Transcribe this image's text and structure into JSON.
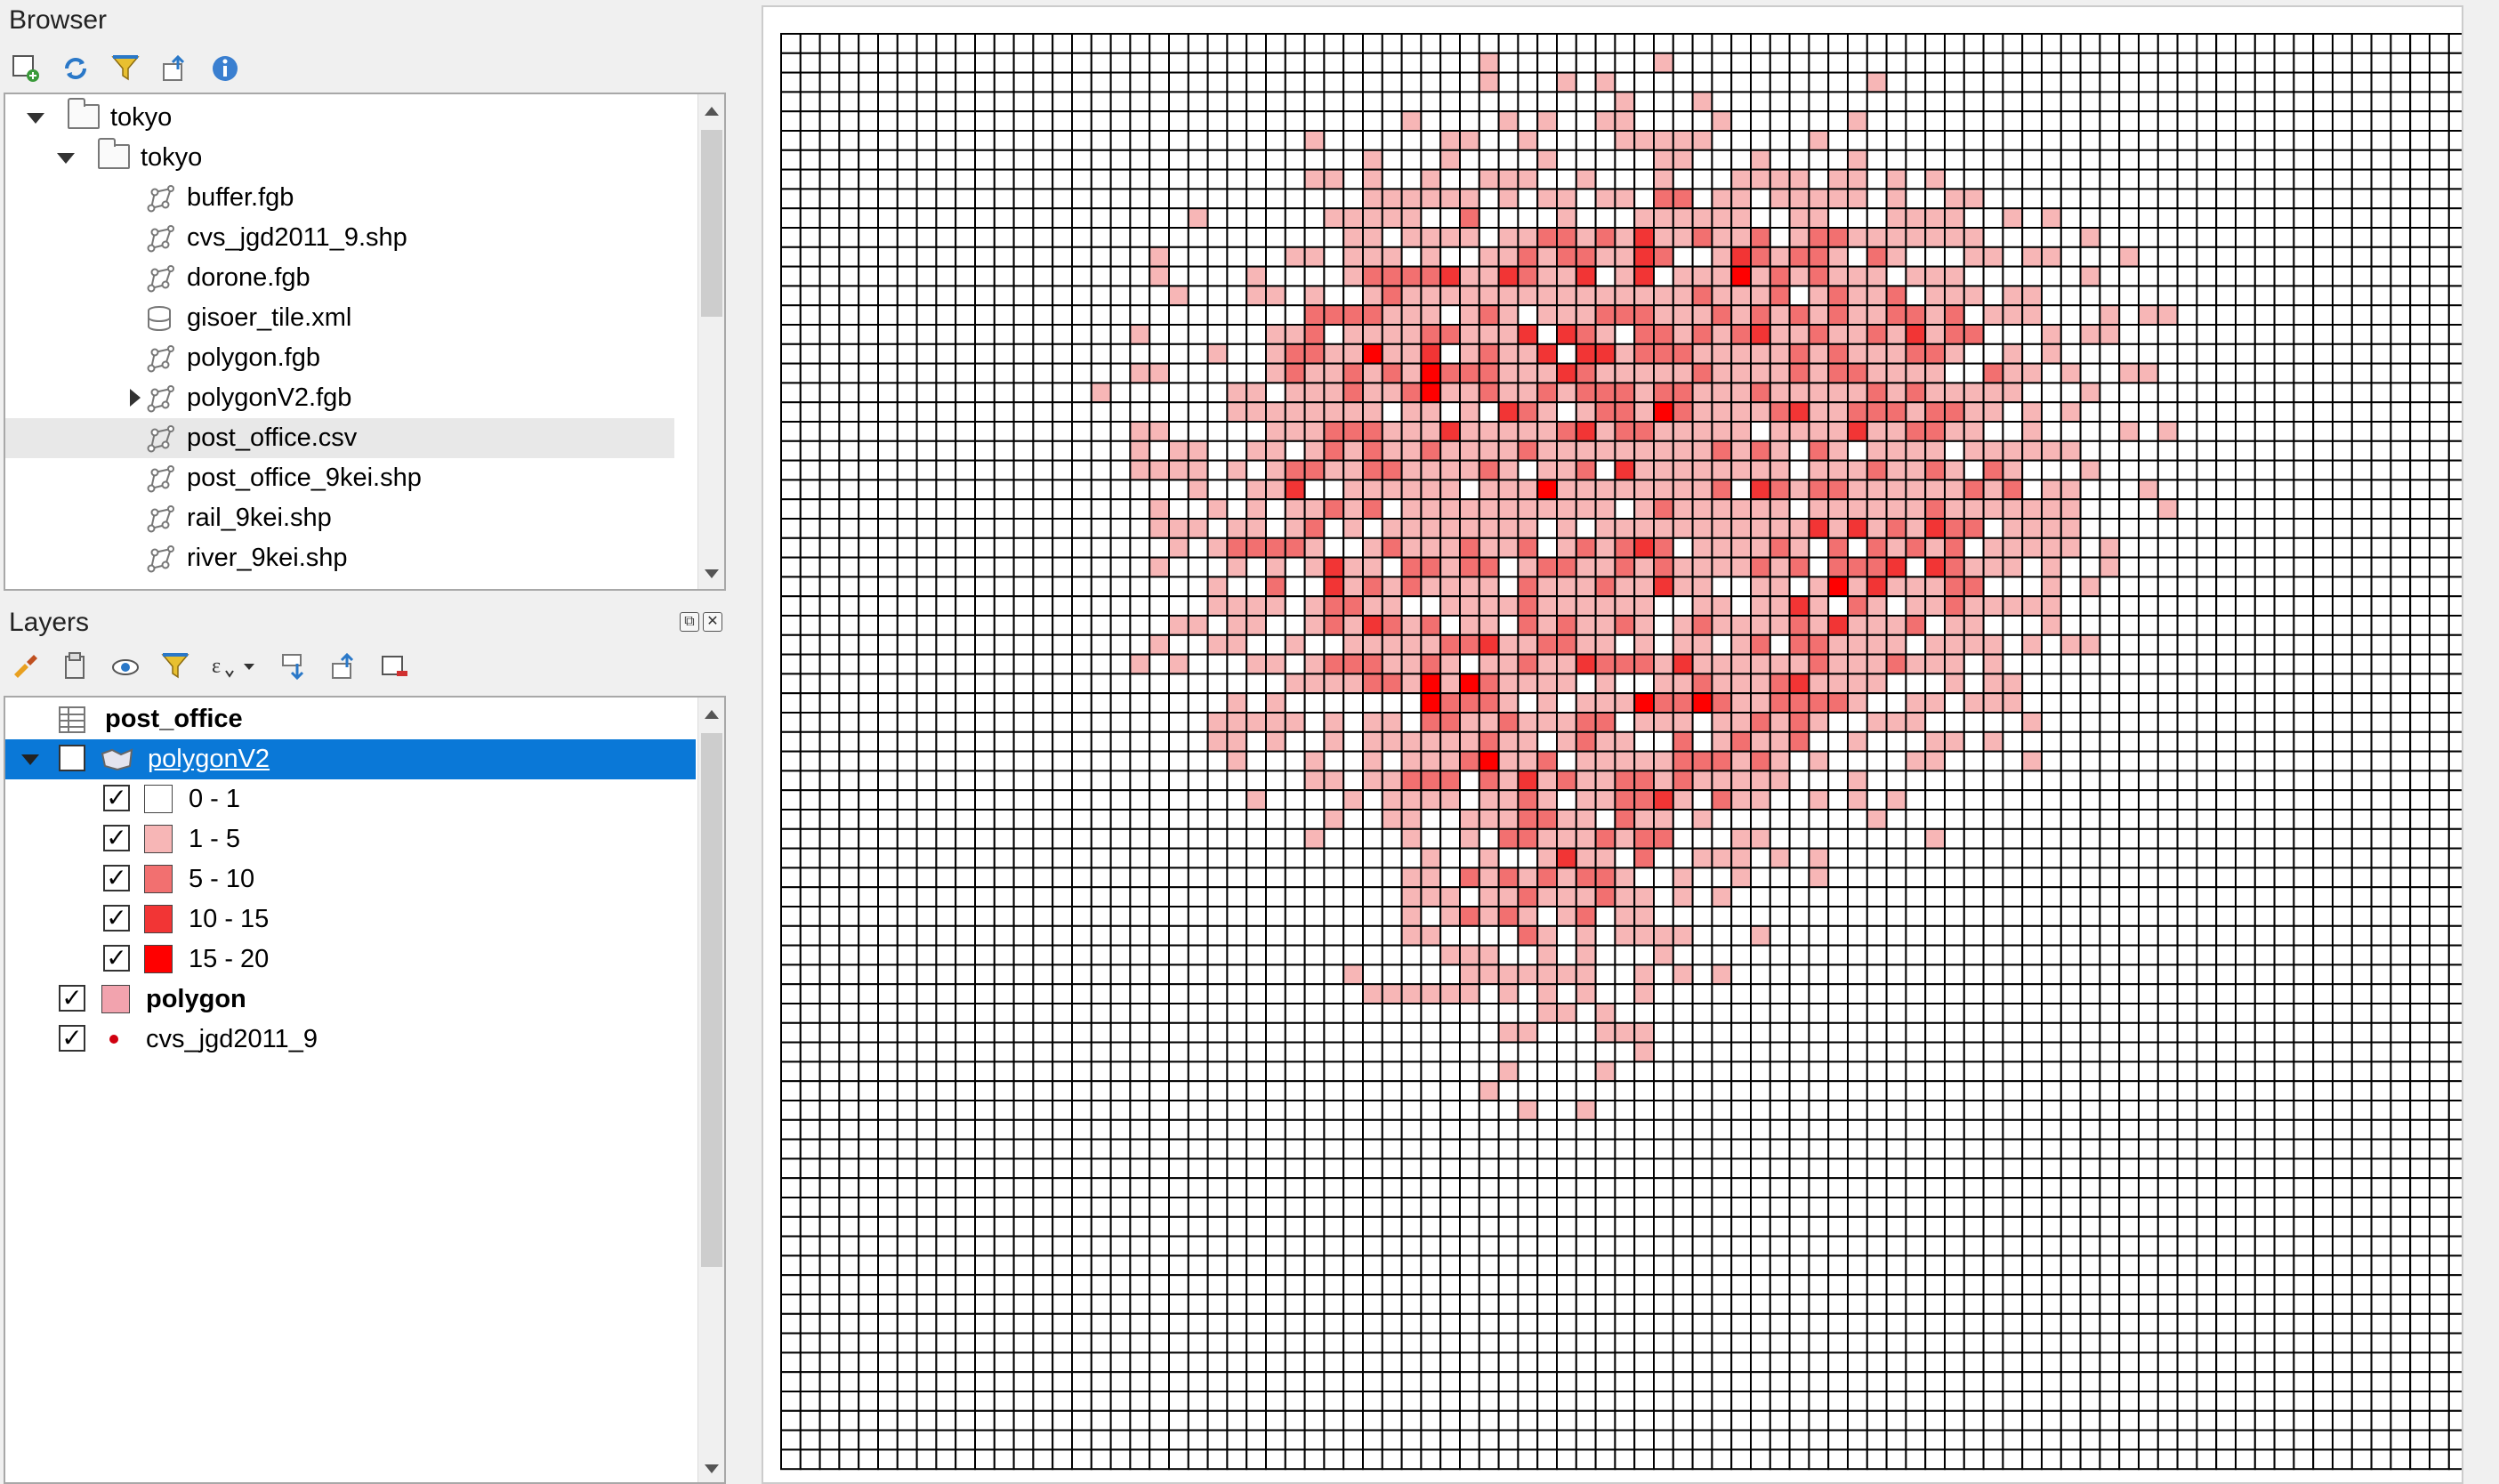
{
  "browser": {
    "title": "Browser",
    "toolbar": [
      "add-layer-icon",
      "refresh-icon",
      "filter-icon",
      "collapse-all-icon",
      "info-icon"
    ],
    "items": [
      {
        "label": "tokyo",
        "type": "folder",
        "depth": 0,
        "expanded": true
      },
      {
        "label": "tokyo",
        "type": "folder",
        "depth": 1,
        "expanded": true
      },
      {
        "label": "buffer.fgb",
        "type": "vector",
        "depth": 2
      },
      {
        "label": "cvs_jgd2011_9.shp",
        "type": "vector",
        "depth": 2
      },
      {
        "label": "dorone.fgb",
        "type": "vector",
        "depth": 2
      },
      {
        "label": "gisoer_tile.xml",
        "type": "database",
        "depth": 2
      },
      {
        "label": "polygon.fgb",
        "type": "vector",
        "depth": 2
      },
      {
        "label": "polygonV2.fgb",
        "type": "vector",
        "depth": 2,
        "collapsed": true
      },
      {
        "label": "post_office.csv",
        "type": "vector",
        "depth": 2,
        "selected": true
      },
      {
        "label": "post_office_9kei.shp",
        "type": "vector",
        "depth": 2
      },
      {
        "label": "rail_9kei.shp",
        "type": "vector",
        "depth": 2
      },
      {
        "label": "river_9kei.shp",
        "type": "vector",
        "depth": 2
      }
    ]
  },
  "layers": {
    "title": "Layers",
    "toolbar": [
      "style-icon",
      "add-group-icon",
      "visibility-icon",
      "filter-legend-icon",
      "expression-filter-icon",
      "expand-all-icon",
      "collapse-all-icon",
      "remove-layer-icon"
    ],
    "items": [
      {
        "label": "post_office",
        "kind": "table",
        "checked": null
      },
      {
        "label": "polygonV2",
        "kind": "polygon-layer",
        "checked": true,
        "selected": true
      },
      {
        "label": "0 - 1",
        "kind": "class",
        "checked": true,
        "color": "#ffffff"
      },
      {
        "label": "1 - 5",
        "kind": "class",
        "checked": true,
        "color": "#f7b6b6"
      },
      {
        "label": "5 - 10",
        "kind": "class",
        "checked": true,
        "color": "#f27070"
      },
      {
        "label": "10 - 15",
        "kind": "class",
        "checked": true,
        "color": "#f23535"
      },
      {
        "label": "15 - 20",
        "kind": "class",
        "checked": true,
        "color": "#ff0000"
      },
      {
        "label": "polygon",
        "kind": "fill-layer",
        "checked": true,
        "color": "#f2a3ae"
      },
      {
        "label": "cvs_jgd2011_9",
        "kind": "point-layer",
        "checked": true,
        "color": "#d0000f"
      }
    ]
  },
  "map": {
    "grid_color": "#000000",
    "background": "#ffffff",
    "class_colors": [
      "#ffffff",
      "#f7b6b6",
      "#f27070",
      "#f23535",
      "#ff0000"
    ]
  }
}
